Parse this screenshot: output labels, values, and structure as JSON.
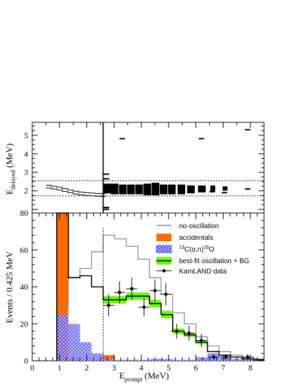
{
  "chart_data": [
    {
      "type": "scatter",
      "ylabel_main": "E",
      "ylabel_sub": "delayed",
      "ylabel_unit": " (MeV)",
      "xlim": [
        0,
        8.5
      ],
      "ylim": [
        0.8,
        5.7
      ],
      "yticks": [
        "2",
        "3",
        "4",
        "5"
      ],
      "ytick_values": [
        2,
        3,
        4,
        5
      ],
      "energy_window_lower": 1.73,
      "energy_window_upper": 2.55,
      "prompt_threshold": 2.6,
      "column_centers": [
        2.76,
        3.02,
        3.32,
        3.62,
        3.92,
        4.22,
        4.52,
        4.82,
        5.12,
        5.47,
        5.82,
        6.22,
        6.62,
        7.07
      ],
      "column_ranges": [
        [
          1.9,
          2.35
        ],
        [
          1.85,
          2.35
        ],
        [
          1.85,
          2.3
        ],
        [
          1.85,
          2.3
        ],
        [
          1.85,
          2.3
        ],
        [
          1.8,
          2.35
        ],
        [
          1.8,
          2.4
        ],
        [
          1.85,
          2.3
        ],
        [
          1.85,
          2.3
        ],
        [
          1.85,
          2.3
        ],
        [
          1.9,
          2.25
        ],
        [
          1.95,
          2.25
        ],
        [
          2.0,
          2.25
        ],
        [
          2.05,
          2.2
        ]
      ],
      "isolated_events": [
        [
          7.9,
          5.3
        ],
        [
          3.3,
          4.82
        ],
        [
          6.2,
          4.82
        ],
        [
          2.72,
          2.9
        ],
        [
          2.72,
          2.65
        ],
        [
          2.72,
          1.1
        ],
        [
          2.72,
          1.0
        ],
        [
          6.6,
          1.95
        ],
        [
          7.05,
          1.9
        ],
        [
          7.9,
          2.1
        ]
      ],
      "projection_histogram": [
        [
          0.5,
          2.2
        ],
        [
          0.7,
          2.15
        ],
        [
          0.9,
          2.1
        ],
        [
          1.1,
          2.02
        ],
        [
          1.3,
          1.95
        ],
        [
          1.5,
          1.88
        ],
        [
          1.7,
          1.83
        ],
        [
          1.9,
          1.8
        ],
        [
          2.1,
          1.78
        ],
        [
          2.3,
          1.76
        ],
        [
          2.5,
          1.75
        ]
      ]
    },
    {
      "type": "bar",
      "ylabel": "Events / 0.425 MeV",
      "xlabel_main": "E",
      "xlabel_sub": "prompt",
      "xlabel_unit": " (MeV)",
      "xlim": [
        0,
        8.5
      ],
      "ylim": [
        0,
        80
      ],
      "xticks": [
        "0",
        "1",
        "2",
        "3",
        "4",
        "5",
        "6",
        "7",
        "8"
      ],
      "xtick_values": [
        0,
        1,
        2,
        3,
        4,
        5,
        6,
        7,
        8
      ],
      "yticks": [
        "0",
        "20",
        "40",
        "60",
        "80"
      ],
      "ytick_values": [
        0,
        20,
        40,
        60,
        80
      ],
      "threshold_line": 2.6,
      "bin_edges": [
        0.9,
        1.325,
        1.75,
        2.175,
        2.6,
        3.025,
        3.45,
        3.875,
        4.3,
        4.725,
        5.15,
        5.575,
        6.0,
        6.425,
        6.85,
        7.275,
        7.7,
        8.125,
        8.5
      ],
      "series": [
        {
          "name": "no-oscillation",
          "color": "#8c8c8c",
          "values": [
            30,
            45,
            50,
            59,
            68,
            66,
            62,
            55,
            45,
            36,
            26,
            20,
            13,
            8,
            5,
            3,
            2,
            1
          ]
        },
        {
          "name": "accidentals",
          "color": "#ff6a00",
          "values": [
            80,
            1,
            0.5,
            0.5,
            3,
            0,
            0,
            0,
            0,
            0,
            0,
            0,
            0,
            0,
            0,
            0,
            0,
            0
          ]
        },
        {
          "name": "13C(α,n)16O",
          "color": "#0000ff",
          "values": [
            25,
            20,
            10,
            4,
            1,
            0.5,
            0.5,
            0.5,
            1,
            1,
            0.5,
            0.5,
            2,
            4,
            2,
            1,
            0.5,
            0.5
          ]
        },
        {
          "name": "best-fit oscillation + BG",
          "color": "#66ff00",
          "values": [
            80,
            45,
            46,
            40,
            33,
            33,
            35,
            35,
            31,
            25,
            16,
            14,
            10,
            5,
            3,
            2,
            1,
            0.5
          ],
          "band": [
            null,
            null,
            null,
            null,
            2,
            2,
            2,
            2,
            2,
            2,
            1.5,
            1,
            1,
            null,
            null,
            null,
            null,
            null
          ]
        },
        {
          "name": "KamLAND data",
          "color": "#000000",
          "points": [
            [
              2.8,
              30
            ],
            [
              3.2,
              37
            ],
            [
              3.65,
              39
            ],
            [
              4.1,
              29
            ],
            [
              4.5,
              38
            ],
            [
              4.9,
              36
            ],
            [
              5.3,
              16
            ],
            [
              5.75,
              15
            ],
            [
              6.2,
              11
            ],
            [
              6.65,
              2
            ],
            [
              7.1,
              2
            ],
            [
              7.9,
              2
            ]
          ],
          "errors": [
            6,
            6,
            6,
            5,
            6,
            6,
            4,
            4,
            3.5,
            1.5,
            1.5,
            1.5
          ]
        }
      ],
      "legend": {
        "position": "top-right",
        "entries": [
          {
            "label": "no-oscillation",
            "kind": "line",
            "color": "#8c8c8c"
          },
          {
            "label": "accidentals",
            "kind": "fill",
            "color": "#ff6a00"
          },
          {
            "label_parts": [
              "13",
              "C(α,n)",
              "16",
              "O"
            ],
            "kind": "hatch",
            "color": "#0000ff"
          },
          {
            "label": "best-fit oscillation + BG",
            "kind": "band",
            "color": "#66ff00"
          },
          {
            "label": "KamLAND data",
            "kind": "marker",
            "color": "#000000"
          }
        ]
      }
    }
  ]
}
